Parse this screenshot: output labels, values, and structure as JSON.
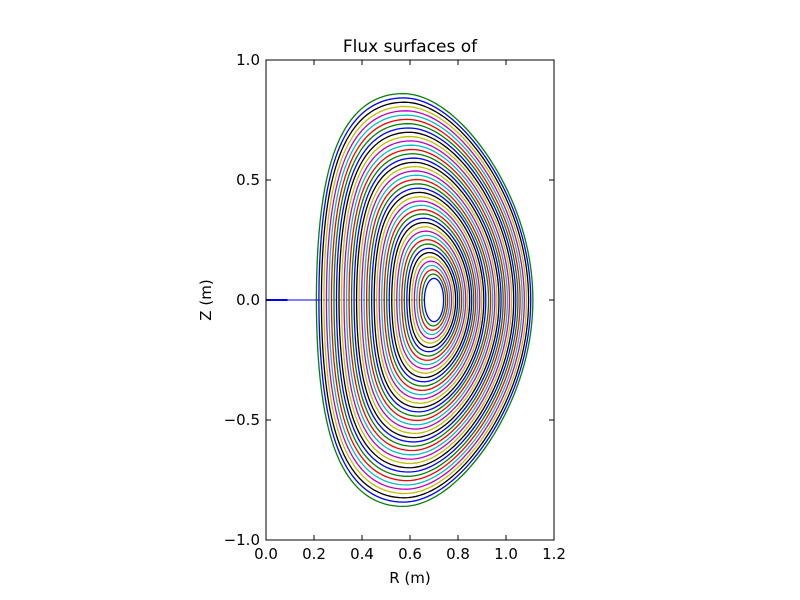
{
  "chart_data": {
    "type": "line",
    "title": "Flux surfaces of",
    "xlabel": "R (m)",
    "ylabel": "Z (m)",
    "xlim": [
      0.0,
      1.2
    ],
    "ylim": [
      -1.0,
      1.0
    ],
    "xticks": [
      "0.0",
      "0.2",
      "0.4",
      "0.6",
      "0.8",
      "1.0",
      "1.2"
    ],
    "yticks": [
      "1.0",
      "0.5",
      "0.0",
      "−0.5",
      "−1.0"
    ],
    "grid": false,
    "legend": "none",
    "contour_levels": 44,
    "magnetic_axis": {
      "R": 0.7,
      "Z": 0.0
    },
    "outer_boundary": {
      "R_inner": 0.21,
      "R_outer": 1.1,
      "Z_top": 0.86,
      "Z_bottom": -0.86,
      "R_at_Z_top": 0.57,
      "R_at_Z_bottom": 0.57
    },
    "innermost_surface": {
      "R_inner": 0.66,
      "R_outer": 0.74,
      "Z_top": 0.09,
      "Z_bottom": -0.09
    },
    "midplane_line": {
      "R_start": 0.0,
      "R_end": 0.22,
      "Z": 0.0
    },
    "color_cycle": [
      "#0000ff",
      "#008000",
      "#ff0000",
      "#00bfbf",
      "#bf00bf",
      "#bfbf00",
      "#000000"
    ]
  }
}
